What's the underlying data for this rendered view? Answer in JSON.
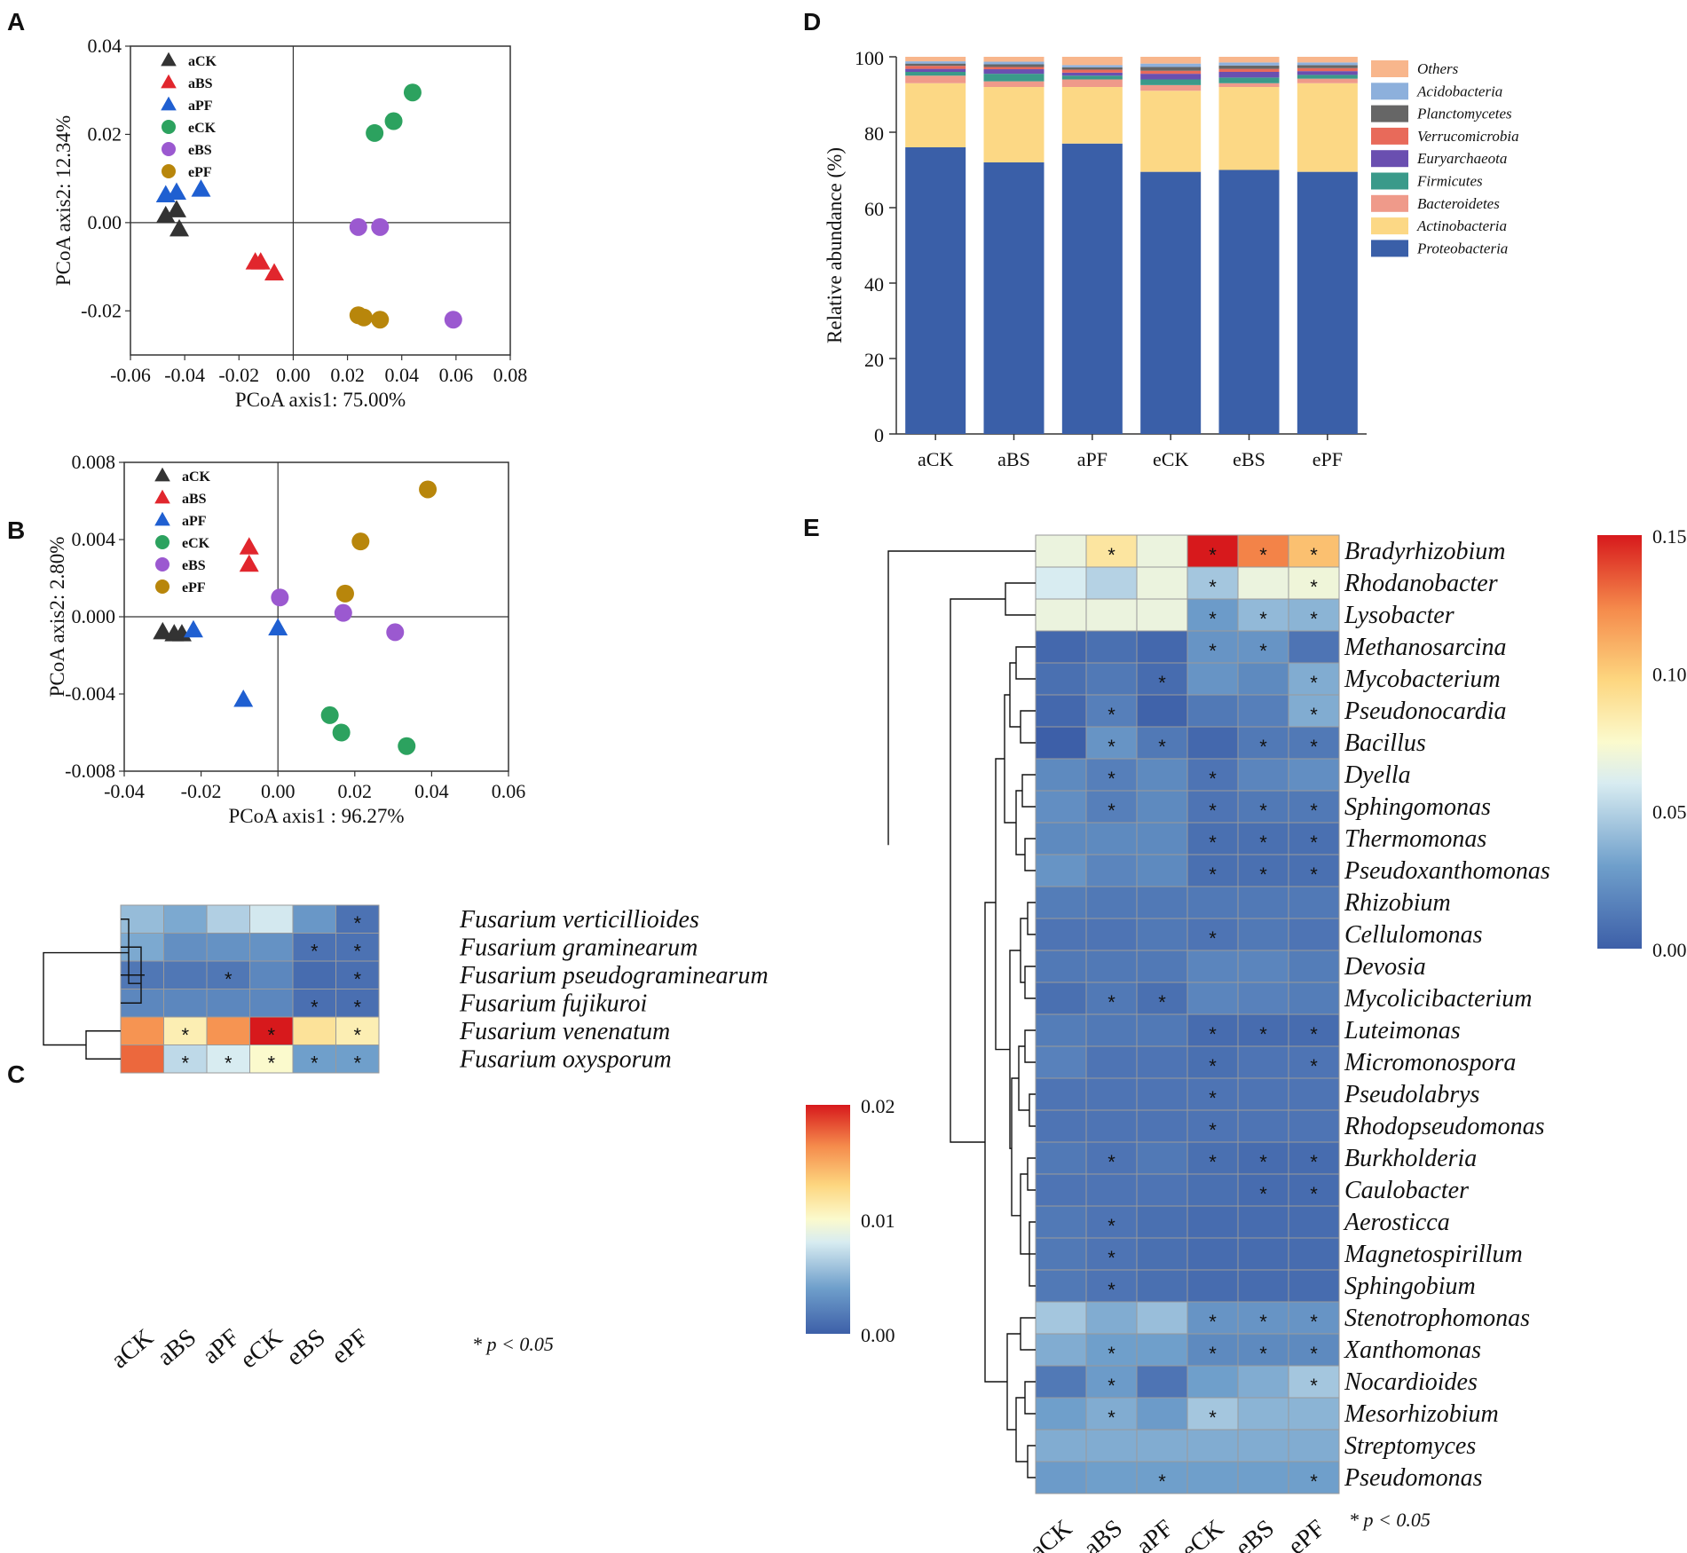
{
  "panels": {
    "A": "A",
    "B": "B",
    "C": "C",
    "D": "D",
    "E": "E"
  },
  "groups": [
    "aCK",
    "aBS",
    "aPF",
    "eCK",
    "eBS",
    "ePF"
  ],
  "groupColors": {
    "aCK": "#333333",
    "aBS": "#e1262d",
    "aPF": "#1f5fd1",
    "eCK": "#2ca25f",
    "eBS": "#9b59d0",
    "ePF": "#b8860b"
  },
  "groupMarkers": {
    "aCK": "triangle",
    "aBS": "triangle",
    "aPF": "triangle",
    "eCK": "circle",
    "eBS": "circle",
    "ePF": "circle"
  },
  "significance_note": "* p < 0.05",
  "chart_data": [
    {
      "id": "A",
      "type": "scatter",
      "xlabel": "PCoA axis1: 75.00%",
      "ylabel": "PCoA axis2: 12.34%",
      "xlim": [
        -0.06,
        0.08
      ],
      "ylim": [
        -0.03,
        0.04
      ],
      "xticks": [
        -0.06,
        -0.04,
        -0.02,
        0.0,
        0.02,
        0.04,
        0.06,
        0.08
      ],
      "xtick_labels": [
        "-0.06",
        "-0.04",
        "-0.02",
        "0.00",
        "0.02",
        "0.04",
        "0.06",
        "0.08"
      ],
      "yticks": [
        -0.02,
        0.0,
        0.02,
        0.04
      ],
      "ytick_labels": [
        "-0.02",
        "0.00",
        "0.02",
        "0.04"
      ],
      "legend": "top-left",
      "series": [
        {
          "name": "aCK",
          "points": [
            [
              -0.047,
              0.0015
            ],
            [
              -0.043,
              0.0028
            ],
            [
              -0.042,
              -0.0015
            ]
          ]
        },
        {
          "name": "aBS",
          "points": [
            [
              -0.014,
              -0.009
            ],
            [
              -0.012,
              -0.009
            ],
            [
              -0.007,
              -0.0115
            ]
          ]
        },
        {
          "name": "aPF",
          "points": [
            [
              -0.047,
              0.0062
            ],
            [
              -0.043,
              0.0068
            ],
            [
              -0.034,
              0.0075
            ]
          ]
        },
        {
          "name": "eCK",
          "points": [
            [
              0.03,
              0.0203
            ],
            [
              0.037,
              0.023
            ],
            [
              0.044,
              0.0295
            ]
          ]
        },
        {
          "name": "eBS",
          "points": [
            [
              0.024,
              -0.001
            ],
            [
              0.032,
              -0.001
            ],
            [
              0.059,
              -0.022
            ]
          ]
        },
        {
          "name": "ePF",
          "points": [
            [
              0.024,
              -0.021
            ],
            [
              0.026,
              -0.0215
            ],
            [
              0.032,
              -0.022
            ]
          ]
        }
      ]
    },
    {
      "id": "B",
      "type": "scatter",
      "xlabel": "PCoA axis1 : 96.27%",
      "ylabel": "PCoA axis2: 2.80%",
      "xlim": [
        -0.04,
        0.06
      ],
      "ylim": [
        -0.008,
        0.008
      ],
      "xticks": [
        -0.04,
        -0.02,
        0.0,
        0.02,
        0.04,
        0.06
      ],
      "xtick_labels": [
        "-0.04",
        "-0.02",
        "0.00",
        "0.02",
        "0.04",
        "0.06"
      ],
      "yticks": [
        -0.008,
        -0.004,
        0.0,
        0.004,
        0.008
      ],
      "ytick_labels": [
        "-0.008",
        "-0.004",
        "0.000",
        "0.004",
        "0.008"
      ],
      "legend": "top-left",
      "series": [
        {
          "name": "aCK",
          "points": [
            [
              -0.03,
              -0.0008
            ],
            [
              -0.027,
              -0.0009
            ],
            [
              -0.025,
              -0.0009
            ]
          ]
        },
        {
          "name": "aBS",
          "points": [
            [
              -0.0075,
              0.0036
            ],
            [
              -0.0075,
              0.0027
            ]
          ]
        },
        {
          "name": "aPF",
          "points": [
            [
              -0.022,
              -0.0007
            ],
            [
              0.0,
              -0.0006
            ],
            [
              -0.009,
              -0.0043
            ]
          ]
        },
        {
          "name": "eCK",
          "points": [
            [
              0.0135,
              -0.0051
            ],
            [
              0.0165,
              -0.006
            ],
            [
              0.0335,
              -0.0067
            ]
          ]
        },
        {
          "name": "eBS",
          "points": [
            [
              0.0005,
              0.001
            ],
            [
              0.017,
              0.0002
            ],
            [
              0.0305,
              -0.0008
            ]
          ]
        },
        {
          "name": "ePF",
          "points": [
            [
              0.039,
              0.0066
            ],
            [
              0.0215,
              0.0039
            ],
            [
              0.0175,
              0.0012
            ]
          ]
        }
      ]
    },
    {
      "id": "C",
      "type": "heatmap",
      "title": "",
      "columns": [
        "aCK",
        "aBS",
        "aPF",
        "eCK",
        "eBS",
        "ePF"
      ],
      "rows": [
        "Fusarium verticillioides",
        "Fusarium graminearum",
        "Fusarium pseudograminearum",
        "Fusarium fujikuroi",
        "Fusarium venenatum",
        "Fusarium oxysporum"
      ],
      "values": [
        [
          0.0055,
          0.0045,
          0.0065,
          0.0078,
          0.0035,
          0.0012
        ],
        [
          0.0045,
          0.003,
          0.0032,
          0.0032,
          0.0012,
          0.0012
        ],
        [
          0.0015,
          0.0015,
          0.0015,
          0.0025,
          0.0008,
          0.001
        ],
        [
          0.0025,
          0.0025,
          0.0025,
          0.0025,
          0.001,
          0.001
        ],
        [
          0.016,
          0.011,
          0.016,
          0.02,
          0.012,
          0.011
        ],
        [
          0.0175,
          0.007,
          0.008,
          0.01,
          0.004,
          0.004
        ]
      ],
      "significant": [
        [
          false,
          false,
          false,
          false,
          false,
          true
        ],
        [
          false,
          false,
          false,
          false,
          true,
          true
        ],
        [
          false,
          false,
          true,
          false,
          false,
          true
        ],
        [
          false,
          false,
          false,
          false,
          true,
          true
        ],
        [
          false,
          true,
          false,
          true,
          false,
          true
        ],
        [
          false,
          true,
          true,
          true,
          true,
          true
        ]
      ],
      "colorbar": {
        "min": 0.0,
        "max": 0.02,
        "ticks": [
          0.0,
          0.01,
          0.02
        ],
        "tick_labels": [
          "0.00",
          "0.01",
          "0.02"
        ]
      }
    },
    {
      "id": "D",
      "type": "bar",
      "stacked": true,
      "ylabel": "Relative abundance (%)",
      "ylim": [
        0,
        100
      ],
      "yticks": [
        0,
        20,
        40,
        60,
        80,
        100
      ],
      "ytick_labels": [
        "0",
        "20",
        "40",
        "60",
        "80",
        "100"
      ],
      "categories": [
        "aCK",
        "aBS",
        "aPF",
        "eCK",
        "eBS",
        "ePF"
      ],
      "legend": "right",
      "series": [
        {
          "name": "Proteobacteria",
          "color": "#3a5fa8",
          "values": [
            76.0,
            72.0,
            77.0,
            69.5,
            70.0,
            69.5
          ]
        },
        {
          "name": "Actinobacteria",
          "color": "#fcd885",
          "values": [
            17.0,
            20.0,
            15.0,
            21.5,
            22.0,
            23.5
          ]
        },
        {
          "name": "Bacteroidetes",
          "color": "#ef9a8a",
          "values": [
            2.0,
            1.5,
            2.0,
            1.5,
            1.0,
            1.2
          ]
        },
        {
          "name": "Firmicutes",
          "color": "#3a9a8a",
          "values": [
            1.0,
            2.0,
            1.0,
            1.5,
            1.5,
            1.0
          ]
        },
        {
          "name": "Euryarchaeota",
          "color": "#6a4fb0",
          "values": [
            0.8,
            1.2,
            0.8,
            1.5,
            1.5,
            1.0
          ]
        },
        {
          "name": "Verrucomicrobia",
          "color": "#e86a5a",
          "values": [
            0.8,
            0.6,
            0.8,
            0.8,
            0.8,
            0.8
          ]
        },
        {
          "name": "Planctomycetes",
          "color": "#666666",
          "values": [
            0.6,
            0.7,
            0.6,
            1.0,
            0.9,
            0.8
          ]
        },
        {
          "name": "Acidobacteria",
          "color": "#8db0dc",
          "values": [
            0.6,
            0.7,
            0.6,
            0.9,
            0.8,
            0.7
          ]
        },
        {
          "name": "Others",
          "color": "#f8b68c",
          "values": [
            1.2,
            1.3,
            2.2,
            1.8,
            1.5,
            1.5
          ]
        }
      ]
    },
    {
      "id": "E",
      "type": "heatmap",
      "columns": [
        "aCK",
        "aBS",
        "aPF",
        "eCK",
        "eBS",
        "ePF"
      ],
      "rows": [
        "Bradyrhizobium",
        "Rhodanobacter",
        "Lysobacter",
        "Methanosarcina",
        "Mycobacterium",
        "Pseudonocardia",
        "Bacillus",
        "Dyella",
        "Sphingomonas",
        "Thermomonas",
        "Pseudoxanthomonas",
        "Rhizobium",
        "Cellulomonas",
        "Devosia",
        "Mycolicibacterium",
        "Luteimonas",
        "Micromonospora",
        "Pseudolabrys",
        "Rhodopseudomonas",
        "Burkholderia",
        "Caulobacter",
        "Aerosticca",
        "Magnetospirillum",
        "Sphingobium",
        "Stenotrophomonas",
        "Xanthomonas",
        "Nocardioides",
        "Mesorhizobium",
        "Streptomyces",
        "Pseudomonas"
      ],
      "values": [
        [
          0.068,
          0.088,
          0.068,
          0.15,
          0.125,
          0.105
        ],
        [
          0.06,
          0.05,
          0.068,
          0.045,
          0.068,
          0.07
        ],
        [
          0.068,
          0.068,
          0.068,
          0.028,
          0.04,
          0.038
        ],
        [
          0.004,
          0.008,
          0.004,
          0.025,
          0.025,
          0.01
        ],
        [
          0.008,
          0.012,
          0.006,
          0.025,
          0.02,
          0.035
        ],
        [
          0.004,
          0.015,
          0.002,
          0.012,
          0.015,
          0.035
        ],
        [
          0.0,
          0.025,
          0.012,
          0.004,
          0.012,
          0.012
        ],
        [
          0.02,
          0.015,
          0.02,
          0.01,
          0.018,
          0.022
        ],
        [
          0.022,
          0.015,
          0.02,
          0.01,
          0.012,
          0.012
        ],
        [
          0.02,
          0.02,
          0.02,
          0.008,
          0.008,
          0.008
        ],
        [
          0.025,
          0.018,
          0.02,
          0.008,
          0.008,
          0.008
        ],
        [
          0.014,
          0.012,
          0.012,
          0.012,
          0.012,
          0.012
        ],
        [
          0.01,
          0.01,
          0.012,
          0.01,
          0.012,
          0.01
        ],
        [
          0.012,
          0.012,
          0.012,
          0.018,
          0.018,
          0.014
        ],
        [
          0.008,
          0.012,
          0.008,
          0.018,
          0.016,
          0.014
        ],
        [
          0.014,
          0.012,
          0.012,
          0.006,
          0.006,
          0.006
        ],
        [
          0.016,
          0.01,
          0.01,
          0.008,
          0.01,
          0.01
        ],
        [
          0.01,
          0.01,
          0.01,
          0.01,
          0.01,
          0.01
        ],
        [
          0.01,
          0.01,
          0.01,
          0.01,
          0.01,
          0.01
        ],
        [
          0.012,
          0.01,
          0.012,
          0.008,
          0.006,
          0.006
        ],
        [
          0.01,
          0.01,
          0.01,
          0.008,
          0.006,
          0.006
        ],
        [
          0.012,
          0.01,
          0.008,
          0.006,
          0.006,
          0.006
        ],
        [
          0.012,
          0.01,
          0.008,
          0.006,
          0.006,
          0.006
        ],
        [
          0.012,
          0.01,
          0.008,
          0.006,
          0.006,
          0.006
        ],
        [
          0.045,
          0.035,
          0.042,
          0.025,
          0.025,
          0.025
        ],
        [
          0.035,
          0.03,
          0.03,
          0.02,
          0.02,
          0.02
        ],
        [
          0.012,
          0.028,
          0.01,
          0.03,
          0.035,
          0.045
        ],
        [
          0.03,
          0.035,
          0.028,
          0.045,
          0.038,
          0.038
        ],
        [
          0.035,
          0.035,
          0.035,
          0.035,
          0.035,
          0.035
        ],
        [
          0.028,
          0.03,
          0.03,
          0.03,
          0.03,
          0.03
        ]
      ],
      "significant": [
        [
          false,
          true,
          false,
          true,
          true,
          true
        ],
        [
          false,
          false,
          false,
          true,
          false,
          true
        ],
        [
          false,
          false,
          false,
          true,
          true,
          true
        ],
        [
          false,
          false,
          false,
          true,
          true,
          false
        ],
        [
          false,
          false,
          true,
          false,
          false,
          true
        ],
        [
          false,
          true,
          false,
          false,
          false,
          true
        ],
        [
          false,
          true,
          true,
          false,
          true,
          true
        ],
        [
          false,
          true,
          false,
          true,
          false,
          false
        ],
        [
          false,
          true,
          false,
          true,
          true,
          true
        ],
        [
          false,
          false,
          false,
          true,
          true,
          true
        ],
        [
          false,
          false,
          false,
          true,
          true,
          true
        ],
        [
          false,
          false,
          false,
          false,
          false,
          false
        ],
        [
          false,
          false,
          false,
          true,
          false,
          false
        ],
        [
          false,
          false,
          false,
          false,
          false,
          false
        ],
        [
          false,
          true,
          true,
          false,
          false,
          false
        ],
        [
          false,
          false,
          false,
          true,
          true,
          true
        ],
        [
          false,
          false,
          false,
          true,
          false,
          true
        ],
        [
          false,
          false,
          false,
          true,
          false,
          false
        ],
        [
          false,
          false,
          false,
          true,
          false,
          false
        ],
        [
          false,
          true,
          false,
          true,
          true,
          true
        ],
        [
          false,
          false,
          false,
          false,
          true,
          true
        ],
        [
          false,
          true,
          false,
          false,
          false,
          false
        ],
        [
          false,
          true,
          false,
          false,
          false,
          false
        ],
        [
          false,
          true,
          false,
          false,
          false,
          false
        ],
        [
          false,
          false,
          false,
          true,
          true,
          true
        ],
        [
          false,
          true,
          false,
          true,
          true,
          true
        ],
        [
          false,
          true,
          false,
          false,
          false,
          true
        ],
        [
          false,
          true,
          false,
          true,
          false,
          false
        ],
        [
          false,
          false,
          false,
          false,
          false,
          false
        ],
        [
          false,
          false,
          true,
          false,
          false,
          true
        ]
      ],
      "colorbar": {
        "min": 0.0,
        "max": 0.15,
        "ticks": [
          0.0,
          0.05,
          0.1,
          0.15
        ],
        "tick_labels": [
          "0.00",
          "0.05",
          "0.10",
          "0.15"
        ]
      }
    }
  ]
}
